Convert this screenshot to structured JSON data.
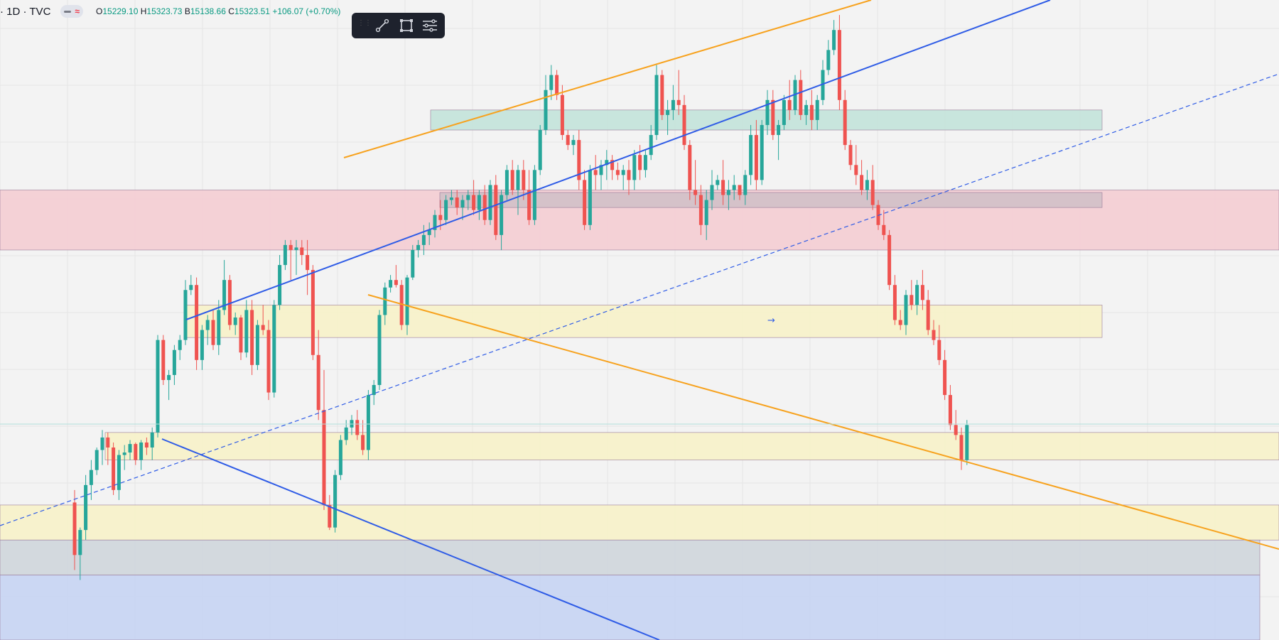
{
  "header": {
    "symbol": "· 1D · TVC",
    "open_label": "O",
    "open": "15229.10",
    "high_label": "H",
    "high": "15323.73",
    "low_label": "B",
    "low": "15138.66",
    "close_label": "C",
    "close": "15323.51",
    "change": "+106.07 (+0.70%)"
  },
  "toolbar": {
    "icons": [
      "drag-handle-icon",
      "trend-line-icon",
      "rectangle-icon",
      "settings-lines-icon"
    ]
  },
  "colors": {
    "up": "#26a69a",
    "down": "#ef5350",
    "background": "#f3f3f3",
    "trend_orange": "#f7a21e",
    "trend_blue": "#2f5ce6",
    "zone_yellow": "#f7f2c9",
    "zone_red": "#f4cdd3",
    "zone_green": "#c3e3da",
    "zone_grey": "#cfd6dc",
    "zone_blue": "#c6d4f3"
  },
  "chart_data": {
    "type": "candlestick",
    "timeframe": "1D",
    "source": "TVC",
    "candles": [
      [
        13795,
        13820,
        13660,
        13690
      ],
      [
        13690,
        13745,
        13640,
        13740
      ],
      [
        13740,
        13850,
        13720,
        13830
      ],
      [
        13830,
        13880,
        13800,
        13860
      ],
      [
        13860,
        13905,
        13850,
        13900
      ],
      [
        13900,
        13940,
        13870,
        13925
      ],
      [
        13925,
        13935,
        13870,
        13905
      ],
      [
        13905,
        13915,
        13810,
        13820
      ],
      [
        13820,
        13900,
        13800,
        13890
      ],
      [
        13890,
        13910,
        13860,
        13895
      ],
      [
        13895,
        13920,
        13880,
        13912
      ],
      [
        13912,
        13915,
        13870,
        13880
      ],
      [
        13880,
        13920,
        13860,
        13915
      ],
      [
        13915,
        13925,
        13890,
        13905
      ],
      [
        13905,
        13945,
        13880,
        13935
      ],
      [
        13935,
        14130,
        13925,
        14120
      ],
      [
        14120,
        14130,
        14030,
        14040
      ],
      [
        14040,
        14060,
        14000,
        14050
      ],
      [
        14050,
        14110,
        14030,
        14100
      ],
      [
        14100,
        14130,
        14080,
        14120
      ],
      [
        14120,
        14240,
        14110,
        14220
      ],
      [
        14220,
        14250,
        14210,
        14230
      ],
      [
        14230,
        14245,
        14060,
        14080
      ],
      [
        14080,
        14150,
        14060,
        14140
      ],
      [
        14140,
        14170,
        14110,
        14160
      ],
      [
        14160,
        14180,
        14100,
        14110
      ],
      [
        14110,
        14200,
        14090,
        14180
      ],
      [
        14180,
        14280,
        14170,
        14240
      ],
      [
        14240,
        14250,
        14140,
        14150
      ],
      [
        14150,
        14175,
        14130,
        14165
      ],
      [
        14165,
        14170,
        14080,
        14095
      ],
      [
        14095,
        14200,
        14085,
        14180
      ],
      [
        14180,
        14200,
        14050,
        14070
      ],
      [
        14070,
        14160,
        14060,
        14150
      ],
      [
        14150,
        14190,
        14130,
        14140
      ],
      [
        14140,
        14160,
        14000,
        14015
      ],
      [
        14015,
        14200,
        14005,
        14190
      ],
      [
        14190,
        14290,
        14180,
        14270
      ],
      [
        14270,
        14320,
        14260,
        14310
      ],
      [
        14310,
        14320,
        14240,
        14300
      ],
      [
        14300,
        14320,
        14250,
        14305
      ],
      [
        14305,
        14320,
        14270,
        14290
      ],
      [
        14290,
        14320,
        14210,
        14260
      ],
      [
        14260,
        14270,
        14080,
        14090
      ],
      [
        14090,
        14140,
        13960,
        13980
      ],
      [
        13980,
        14060,
        13780,
        13790
      ],
      [
        13790,
        13810,
        13740,
        13745
      ],
      [
        13745,
        13860,
        13735,
        13850
      ],
      [
        13850,
        13930,
        13840,
        13920
      ],
      [
        13920,
        13960,
        13910,
        13945
      ],
      [
        13945,
        13970,
        13930,
        13960
      ],
      [
        13960,
        13980,
        13920,
        13930
      ],
      [
        13930,
        13960,
        13890,
        13900
      ],
      [
        13900,
        14020,
        13880,
        14010
      ],
      [
        14010,
        14040,
        13990,
        14030
      ],
      [
        14030,
        14180,
        14020,
        14170
      ],
      [
        14170,
        14235,
        14150,
        14225
      ],
      [
        14225,
        14250,
        14215,
        14240
      ],
      [
        14240,
        14270,
        14225,
        14230
      ],
      [
        14230,
        14240,
        14140,
        14150
      ],
      [
        14150,
        14250,
        14130,
        14245
      ],
      [
        14245,
        14310,
        14240,
        14300
      ],
      [
        14300,
        14320,
        14285,
        14310
      ],
      [
        14310,
        14350,
        14290,
        14330
      ],
      [
        14330,
        14355,
        14310,
        14340
      ],
      [
        14340,
        14380,
        14325,
        14370
      ],
      [
        14370,
        14400,
        14340,
        14360
      ],
      [
        14360,
        14410,
        14350,
        14400
      ],
      [
        14400,
        14420,
        14390,
        14405
      ],
      [
        14405,
        14420,
        14370,
        14385
      ],
      [
        14385,
        14410,
        14360,
        14400
      ],
      [
        14400,
        14420,
        14380,
        14410
      ],
      [
        14410,
        14440,
        14370,
        14380
      ],
      [
        14380,
        14420,
        14360,
        14410
      ],
      [
        14410,
        14430,
        14350,
        14360
      ],
      [
        14360,
        14440,
        14350,
        14430
      ],
      [
        14430,
        14450,
        14320,
        14330
      ],
      [
        14330,
        14420,
        14300,
        14410
      ],
      [
        14410,
        14470,
        14400,
        14460
      ],
      [
        14460,
        14480,
        14410,
        14420
      ],
      [
        14420,
        14470,
        14370,
        14460
      ],
      [
        14460,
        14480,
        14400,
        14420
      ],
      [
        14420,
        14460,
        14350,
        14360
      ],
      [
        14360,
        14470,
        14350,
        14460
      ],
      [
        14460,
        14550,
        14450,
        14540
      ],
      [
        14540,
        14650,
        14530,
        14620
      ],
      [
        14620,
        14670,
        14600,
        14650
      ],
      [
        14650,
        14660,
        14600,
        14610
      ],
      [
        14610,
        14630,
        14520,
        14530
      ],
      [
        14530,
        14540,
        14500,
        14510
      ],
      [
        14510,
        14530,
        14490,
        14520
      ],
      [
        14520,
        14540,
        14420,
        14440
      ],
      [
        14440,
        14460,
        14340,
        14350
      ],
      [
        14350,
        14470,
        14340,
        14460
      ],
      [
        14460,
        14490,
        14420,
        14450
      ],
      [
        14450,
        14480,
        14420,
        14470
      ],
      [
        14470,
        14500,
        14440,
        14480
      ],
      [
        14480,
        14490,
        14440,
        14460
      ],
      [
        14460,
        14475,
        14440,
        14450
      ],
      [
        14450,
        14470,
        14420,
        14460
      ],
      [
        14460,
        14480,
        14410,
        14440
      ],
      [
        14440,
        14500,
        14420,
        14490
      ],
      [
        14490,
        14510,
        14440,
        14460
      ],
      [
        14460,
        14500,
        14445,
        14490
      ],
      [
        14490,
        14550,
        14480,
        14530
      ],
      [
        14530,
        14670,
        14520,
        14650
      ],
      [
        14650,
        14660,
        14560,
        14570
      ],
      [
        14570,
        14600,
        14530,
        14580
      ],
      [
        14580,
        14630,
        14560,
        14600
      ],
      [
        14600,
        14660,
        14570,
        14590
      ],
      [
        14590,
        14610,
        14500,
        14510
      ],
      [
        14510,
        14520,
        14400,
        14420
      ],
      [
        14420,
        14480,
        14390,
        14410
      ],
      [
        14410,
        14430,
        14330,
        14350
      ],
      [
        14350,
        14420,
        14320,
        14400
      ],
      [
        14400,
        14460,
        14380,
        14430
      ],
      [
        14430,
        14450,
        14420,
        14440
      ],
      [
        14440,
        14480,
        14390,
        14410
      ],
      [
        14410,
        14440,
        14380,
        14420
      ],
      [
        14420,
        14450,
        14400,
        14430
      ],
      [
        14430,
        14420,
        14400,
        14410
      ],
      [
        14410,
        14460,
        14390,
        14450
      ],
      [
        14450,
        14550,
        14430,
        14530
      ],
      [
        14530,
        14560,
        14420,
        14440
      ],
      [
        14440,
        14560,
        14430,
        14550
      ],
      [
        14550,
        14620,
        14530,
        14600
      ],
      [
        14600,
        14620,
        14520,
        14530
      ],
      [
        14530,
        14560,
        14480,
        14550
      ],
      [
        14550,
        14610,
        14540,
        14600
      ],
      [
        14600,
        14640,
        14560,
        14580
      ],
      [
        14580,
        14650,
        14570,
        14640
      ],
      [
        14640,
        14660,
        14560,
        14570
      ],
      [
        14570,
        14600,
        14550,
        14590
      ],
      [
        14590,
        14620,
        14540,
        14560
      ],
      [
        14560,
        14610,
        14540,
        14600
      ],
      [
        14600,
        14680,
        14590,
        14660
      ],
      [
        14660,
        14720,
        14650,
        14700
      ],
      [
        14700,
        14760,
        14690,
        14740
      ],
      [
        14740,
        14770,
        14580,
        14600
      ],
      [
        14600,
        14620,
        14500,
        14510
      ],
      [
        14510,
        14520,
        14460,
        14470
      ],
      [
        14470,
        14510,
        14430,
        14450
      ],
      [
        14450,
        14480,
        14410,
        14420
      ],
      [
        14420,
        14460,
        14400,
        14440
      ],
      [
        14440,
        14470,
        14380,
        14390
      ],
      [
        14390,
        14400,
        14340,
        14350
      ],
      [
        14350,
        14380,
        14320,
        14330
      ],
      [
        14330,
        14340,
        14220,
        14230
      ],
      [
        14230,
        14250,
        14150,
        14160
      ],
      [
        14160,
        14180,
        14140,
        14150
      ],
      [
        14150,
        14220,
        14130,
        14210
      ],
      [
        14210,
        14240,
        14180,
        14190
      ],
      [
        14190,
        14240,
        14170,
        14230
      ],
      [
        14230,
        14260,
        14180,
        14200
      ],
      [
        14200,
        14220,
        14130,
        14140
      ],
      [
        14140,
        14160,
        14110,
        14120
      ],
      [
        14120,
        14150,
        14070,
        14080
      ],
      [
        14080,
        14100,
        14000,
        14010
      ],
      [
        14010,
        14030,
        13940,
        13950
      ],
      [
        13950,
        13980,
        13920,
        13930
      ],
      [
        13930,
        13945,
        13860,
        13880
      ],
      [
        13880,
        13960,
        13870,
        13950
      ]
    ],
    "zones": [
      {
        "name": "red-resistance-zone",
        "top": 14420,
        "bottom": 14300,
        "color": "#f4cdd3"
      },
      {
        "name": "green-top-zone",
        "top": 14580,
        "bottom": 14540,
        "color": "#c3e3da"
      },
      {
        "name": "grey-inner-zone",
        "top": 14415,
        "bottom": 14385,
        "color": "#d2c0c8"
      },
      {
        "name": "yellow-mid-zone",
        "top": 14190,
        "bottom": 14125,
        "color": "#f7f2c9"
      },
      {
        "name": "yellow-support-zone",
        "top": 13935,
        "bottom": 13880,
        "color": "#f7f2c9"
      },
      {
        "name": "yellow-low-zone",
        "top": 13790,
        "bottom": 13720,
        "color": "#f7f2c9"
      },
      {
        "name": "grey-low-zone",
        "top": 13720,
        "bottom": 13650,
        "color": "#cfd6dc"
      },
      {
        "name": "blue-bottom-zone",
        "top": 13650,
        "bottom": 13520,
        "color": "#c6d4f3"
      }
    ]
  }
}
